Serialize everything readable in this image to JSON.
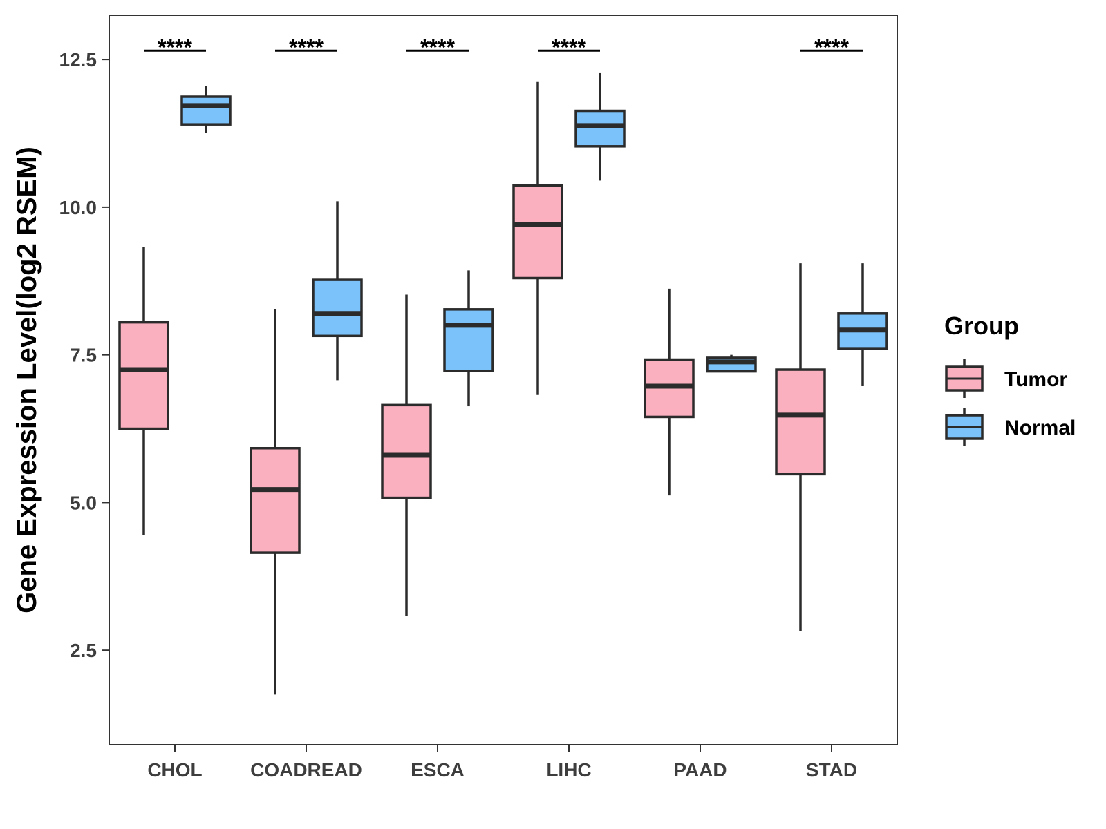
{
  "chart_data": {
    "type": "boxplot",
    "title": "",
    "xlabel": "",
    "ylabel": "Gene Expression Level(log2 RSEM)",
    "ylim": [
      0.9,
      13.25
    ],
    "yticks": [
      2.5,
      5.0,
      7.5,
      10.0,
      12.5
    ],
    "ytick_labels": [
      "2.5",
      "5.0",
      "7.5",
      "10.0",
      "12.5"
    ],
    "categories": [
      "CHOL",
      "COADREAD",
      "ESCA",
      "LIHC",
      "PAAD",
      "STAD"
    ],
    "grid": false,
    "legend": {
      "title": "Group",
      "position": "right"
    },
    "series": [
      {
        "name": "Tumor",
        "color": "#FBB0C0",
        "boxes": [
          {
            "whisker_low": 4.45,
            "q1": 6.25,
            "median": 7.25,
            "q3": 8.05,
            "whisker_high": 9.32
          },
          {
            "whisker_low": 1.75,
            "q1": 4.15,
            "median": 5.22,
            "q3": 5.92,
            "whisker_high": 8.28
          },
          {
            "whisker_low": 3.08,
            "q1": 5.08,
            "median": 5.8,
            "q3": 6.65,
            "whisker_high": 8.52
          },
          {
            "whisker_low": 6.82,
            "q1": 8.8,
            "median": 9.7,
            "q3": 10.37,
            "whisker_high": 12.13
          },
          {
            "whisker_low": 5.12,
            "q1": 6.45,
            "median": 6.97,
            "q3": 7.42,
            "whisker_high": 8.62
          },
          {
            "whisker_low": 2.82,
            "q1": 5.48,
            "median": 6.48,
            "q3": 7.25,
            "whisker_high": 9.05
          }
        ]
      },
      {
        "name": "Normal",
        "color": "#7AC2F9",
        "boxes": [
          {
            "whisker_low": 11.25,
            "q1": 11.4,
            "median": 11.72,
            "q3": 11.87,
            "whisker_high": 12.05
          },
          {
            "whisker_low": 7.07,
            "q1": 7.82,
            "median": 8.2,
            "q3": 8.77,
            "whisker_high": 10.1
          },
          {
            "whisker_low": 6.63,
            "q1": 7.23,
            "median": 8.0,
            "q3": 8.27,
            "whisker_high": 8.93
          },
          {
            "whisker_low": 10.45,
            "q1": 11.03,
            "median": 11.38,
            "q3": 11.63,
            "whisker_high": 12.28
          },
          {
            "whisker_low": 7.22,
            "q1": 7.22,
            "median": 7.38,
            "q3": 7.45,
            "whisker_high": 7.5
          },
          {
            "whisker_low": 6.97,
            "q1": 7.6,
            "median": 7.92,
            "q3": 8.2,
            "whisker_high": 9.05
          }
        ]
      }
    ],
    "annotations": [
      {
        "category": "CHOL",
        "text": "****",
        "y": 12.65
      },
      {
        "category": "COADREAD",
        "text": "****",
        "y": 12.65
      },
      {
        "category": "ESCA",
        "text": "****",
        "y": 12.65
      },
      {
        "category": "LIHC",
        "text": "****",
        "y": 12.65
      },
      {
        "category": "STAD",
        "text": "****",
        "y": 12.65
      }
    ]
  }
}
